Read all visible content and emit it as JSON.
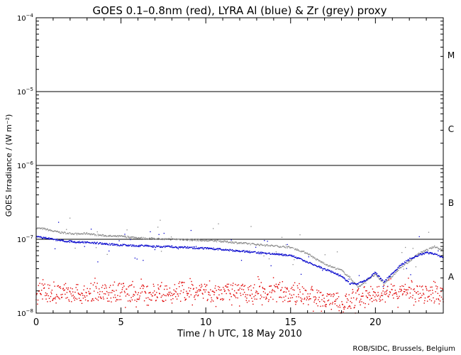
{
  "chart_data": {
    "type": "scatter",
    "title": "GOES 0.1–0.8nm (red), LYRA Al (blue) & Zr (grey) proxy",
    "xlabel": "Time / h UTC, 18 May 2010",
    "ylabel": "GOES Irradiance / (W m⁻²)",
    "credit": "ROB/SIDC, Brussels, Belgium",
    "xlim": [
      0,
      24
    ],
    "ylim_log10": [
      -8,
      -4
    ],
    "y_scale": "log",
    "x_ticks": [
      0,
      5,
      10,
      15,
      20
    ],
    "x_tick_labels": [
      "0",
      "5",
      "10",
      "15",
      "20"
    ],
    "y_ticks_log10": [
      -8,
      -7,
      -6,
      -5,
      -4
    ],
    "y_tick_base": "10",
    "y_tick_exponents": [
      "−8",
      "−7",
      "−6",
      "−5",
      "−4"
    ],
    "flare_levels_log10": [
      -7,
      -6,
      -5
    ],
    "flare_classes": [
      {
        "label": "A",
        "mid_log10": -7.5
      },
      {
        "label": "B",
        "mid_log10": -6.5
      },
      {
        "label": "C",
        "mid_log10": -5.5
      },
      {
        "label": "M",
        "mid_log10": -4.5
      }
    ],
    "colors": {
      "goes": "#e00000",
      "lyra_al": "#0000cc",
      "lyra_zr": "#888888",
      "axis": "#000000"
    },
    "series": [
      {
        "key": "lyra_zr",
        "x": [
          0,
          0.5,
          1,
          1.5,
          2,
          2.5,
          3,
          3.5,
          4,
          4.5,
          5,
          5.5,
          6,
          6.5,
          7,
          7.5,
          8,
          8.5,
          9,
          9.5,
          10,
          10.5,
          11,
          11.5,
          12,
          12.5,
          13,
          13.5,
          14,
          14.5,
          15,
          15.5,
          16,
          16.5,
          17,
          17.5,
          18,
          18.5,
          19,
          19.5,
          20,
          20.5,
          21,
          21.5,
          22,
          22.5,
          23,
          23.5,
          24
        ],
        "y_log10": [
          -6.85,
          -6.86,
          -6.89,
          -6.91,
          -6.92,
          -6.93,
          -6.92,
          -6.94,
          -6.95,
          -6.96,
          -6.96,
          -6.97,
          -6.98,
          -6.99,
          -6.99,
          -7.0,
          -7.0,
          -7.0,
          -7.01,
          -7.01,
          -7.02,
          -7.02,
          -7.03,
          -7.04,
          -7.05,
          -7.06,
          -7.07,
          -7.08,
          -7.09,
          -7.1,
          -7.11,
          -7.15,
          -7.19,
          -7.27,
          -7.33,
          -7.38,
          -7.42,
          -7.52,
          -7.65,
          -7.55,
          -7.48,
          -7.6,
          -7.5,
          -7.38,
          -7.3,
          -7.2,
          -7.15,
          -7.1,
          -7.15
        ]
      },
      {
        "key": "lyra_al",
        "x": [
          0,
          0.5,
          1,
          1.5,
          2,
          2.5,
          3,
          3.5,
          4,
          4.5,
          5,
          5.5,
          6,
          6.5,
          7,
          7.5,
          8,
          8.5,
          9,
          9.5,
          10,
          10.5,
          11,
          11.5,
          12,
          12.5,
          13,
          13.5,
          14,
          14.5,
          15,
          15.5,
          16,
          16.5,
          17,
          17.5,
          18,
          18.5,
          19,
          19.5,
          20,
          20.5,
          21,
          21.5,
          22,
          22.5,
          23,
          23.5,
          24
        ],
        "y_log10": [
          -6.97,
          -6.98,
          -7.0,
          -7.02,
          -7.03,
          -7.04,
          -7.04,
          -7.05,
          -7.06,
          -7.07,
          -7.08,
          -7.08,
          -7.09,
          -7.09,
          -7.1,
          -7.1,
          -7.1,
          -7.11,
          -7.11,
          -7.12,
          -7.12,
          -7.13,
          -7.14,
          -7.15,
          -7.16,
          -7.17,
          -7.18,
          -7.19,
          -7.2,
          -7.21,
          -7.22,
          -7.26,
          -7.31,
          -7.36,
          -7.4,
          -7.45,
          -7.5,
          -7.6,
          -7.6,
          -7.55,
          -7.45,
          -7.58,
          -7.46,
          -7.35,
          -7.27,
          -7.22,
          -7.18,
          -7.2,
          -7.25
        ]
      },
      {
        "key": "goes",
        "x": [
          0,
          0.5,
          1,
          1.5,
          2,
          2.5,
          3,
          3.5,
          4,
          4.5,
          5,
          5.5,
          6,
          6.5,
          7,
          7.5,
          8,
          8.5,
          9,
          9.5,
          10,
          10.5,
          11,
          11.5,
          12,
          12.5,
          13,
          13.5,
          14,
          14.5,
          15,
          15.5,
          16,
          16.5,
          17,
          17.5,
          18,
          18.5,
          19,
          19.5,
          20,
          20.5,
          21,
          21.5,
          22,
          22.5,
          23,
          23.5,
          24
        ],
        "y_log10": [
          -7.7,
          -7.72,
          -7.74,
          -7.71,
          -7.73,
          -7.72,
          -7.75,
          -7.7,
          -7.72,
          -7.74,
          -7.71,
          -7.73,
          -7.72,
          -7.75,
          -7.71,
          -7.74,
          -7.72,
          -7.7,
          -7.73,
          -7.72,
          -7.71,
          -7.74,
          -7.73,
          -7.7,
          -7.72,
          -7.75,
          -7.71,
          -7.73,
          -7.72,
          -7.74,
          -7.73,
          -7.75,
          -7.77,
          -7.78,
          -7.8,
          -7.85,
          -7.9,
          -7.85,
          -7.78,
          -7.75,
          -7.74,
          -7.72,
          -7.71,
          -7.73,
          -7.72,
          -7.74,
          -7.73,
          -7.75,
          -7.77
        ]
      }
    ]
  }
}
